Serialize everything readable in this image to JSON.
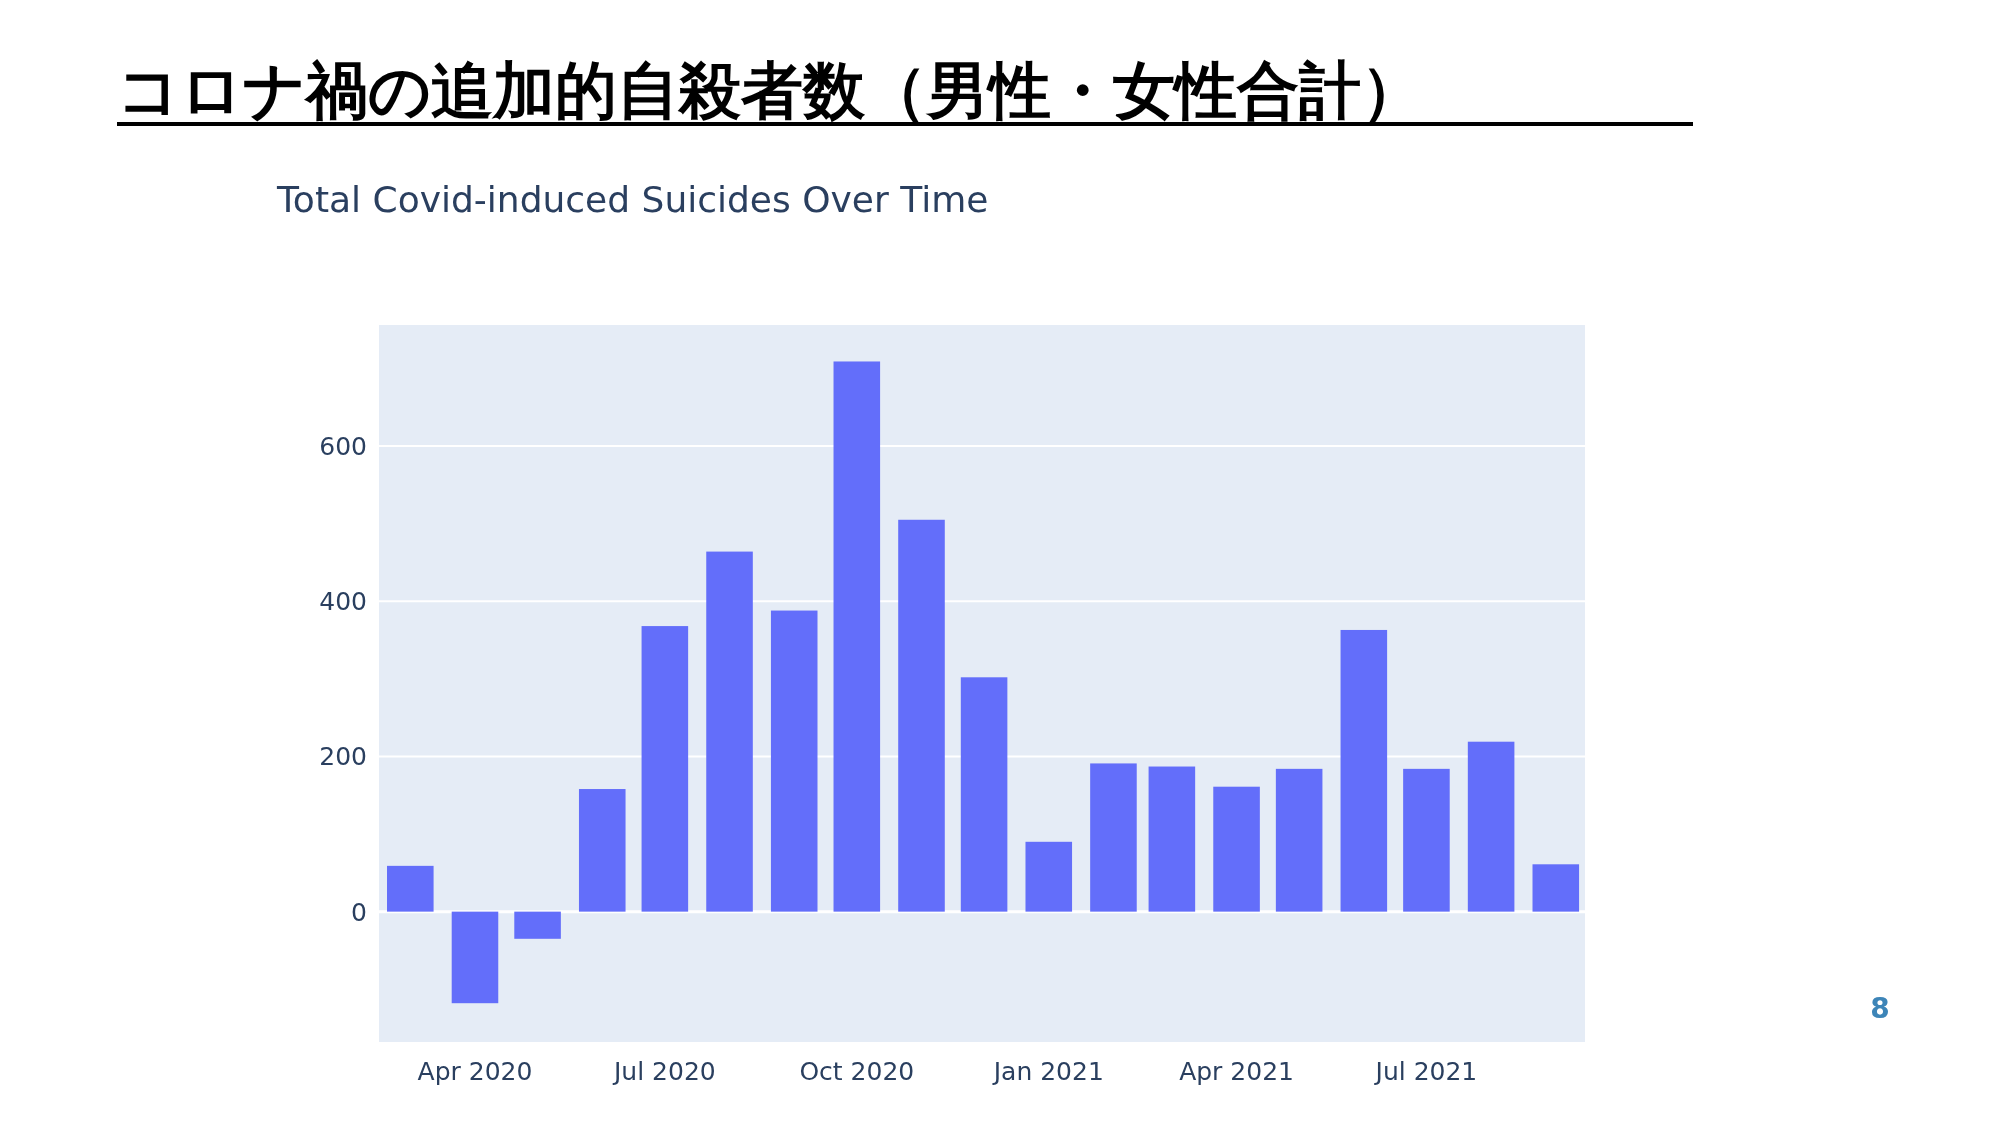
{
  "chart_data": {
    "type": "bar",
    "title": "コロナ禍の追加的自殺者数（男性・女性合計）",
    "subtitle": "Total Covid-induced Suicides Over Time",
    "x": [
      "2020-03",
      "2020-04",
      "2020-05",
      "2020-06",
      "2020-07",
      "2020-08",
      "2020-09",
      "2020-10",
      "2020-11",
      "2020-12",
      "2021-01",
      "2021-02",
      "2021-03",
      "2021-04",
      "2021-05",
      "2021-06",
      "2021-07",
      "2021-08",
      "2021-09"
    ],
    "values": [
      59,
      -118,
      -35,
      158,
      368,
      464,
      388,
      709,
      505,
      302,
      90,
      191,
      187,
      161,
      184,
      363,
      184,
      219,
      61
    ],
    "color": "#636efa",
    "xlim": [
      "2020-02-15",
      "2021-09-15"
    ],
    "xticks": [
      {
        "value": "2020-04",
        "label": "Apr 2020"
      },
      {
        "value": "2020-07",
        "label": "Jul 2020"
      },
      {
        "value": "2020-10",
        "label": "Oct 2020"
      },
      {
        "value": "2021-01",
        "label": "Jan 2021"
      },
      {
        "value": "2021-04",
        "label": "Apr 2021"
      },
      {
        "value": "2021-07",
        "label": "Jul 2021"
      }
    ],
    "ylim": [
      -168,
      756
    ],
    "yticks": [
      0,
      200,
      400,
      600
    ],
    "grid": "y",
    "annotations": [
      "8"
    ]
  }
}
